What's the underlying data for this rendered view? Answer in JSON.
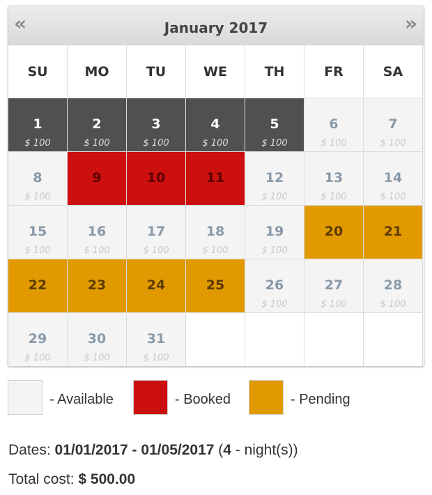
{
  "calendar": {
    "prev_icon": "«",
    "next_icon": "»",
    "month_title": "January 2017",
    "weekdays": [
      "SU",
      "MO",
      "TU",
      "WE",
      "TH",
      "FR",
      "SA"
    ],
    "days": [
      {
        "day": "1",
        "price": "$ 100",
        "status": "selected"
      },
      {
        "day": "2",
        "price": "$ 100",
        "status": "selected"
      },
      {
        "day": "3",
        "price": "$ 100",
        "status": "selected"
      },
      {
        "day": "4",
        "price": "$ 100",
        "status": "selected"
      },
      {
        "day": "5",
        "price": "$ 100",
        "status": "selected"
      },
      {
        "day": "6",
        "price": "$ 100",
        "status": "available"
      },
      {
        "day": "7",
        "price": "$ 100",
        "status": "available"
      },
      {
        "day": "8",
        "price": "$ 100",
        "status": "available"
      },
      {
        "day": "9",
        "price": "",
        "status": "booked"
      },
      {
        "day": "10",
        "price": "",
        "status": "booked"
      },
      {
        "day": "11",
        "price": "",
        "status": "booked"
      },
      {
        "day": "12",
        "price": "$ 100",
        "status": "available"
      },
      {
        "day": "13",
        "price": "$ 100",
        "status": "available"
      },
      {
        "day": "14",
        "price": "$ 100",
        "status": "available"
      },
      {
        "day": "15",
        "price": "$ 100",
        "status": "available"
      },
      {
        "day": "16",
        "price": "$ 100",
        "status": "available"
      },
      {
        "day": "17",
        "price": "$ 100",
        "status": "available"
      },
      {
        "day": "18",
        "price": "$ 100",
        "status": "available"
      },
      {
        "day": "19",
        "price": "$ 100",
        "status": "available"
      },
      {
        "day": "20",
        "price": "",
        "status": "pending"
      },
      {
        "day": "21",
        "price": "",
        "status": "pending"
      },
      {
        "day": "22",
        "price": "",
        "status": "pending"
      },
      {
        "day": "23",
        "price": "",
        "status": "pending"
      },
      {
        "day": "24",
        "price": "",
        "status": "pending"
      },
      {
        "day": "25",
        "price": "",
        "status": "pending"
      },
      {
        "day": "26",
        "price": "$ 100",
        "status": "available"
      },
      {
        "day": "27",
        "price": "$ 100",
        "status": "available"
      },
      {
        "day": "28",
        "price": "$ 100",
        "status": "available"
      },
      {
        "day": "29",
        "price": "$ 100",
        "status": "available"
      },
      {
        "day": "30",
        "price": "$ 100",
        "status": "available"
      },
      {
        "day": "31",
        "price": "$ 100",
        "status": "available"
      }
    ],
    "trailing_empty_cells": 4
  },
  "legend": [
    {
      "label": "- Available",
      "color": "#f4f4f4"
    },
    {
      "label": "- Booked",
      "color": "#cc0f0f"
    },
    {
      "label": "- Pending",
      "color": "#e09a00"
    }
  ],
  "summary": {
    "dates_label": "Dates:",
    "date_from": "01/01/2017",
    "date_sep": " - ",
    "date_to": "01/05/2017",
    "paren_open": " (",
    "nights_count": "4",
    "nights_label": " - night(s))",
    "cost_label": "Total cost:",
    "cost_value": "$ 500.00"
  }
}
